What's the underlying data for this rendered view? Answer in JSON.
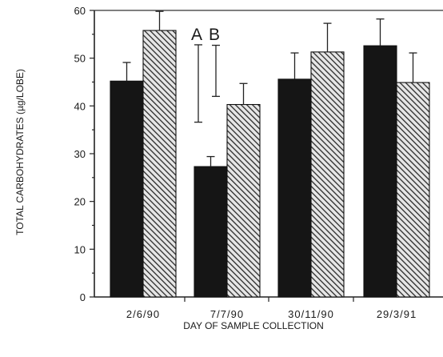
{
  "chart_data": {
    "type": "bar",
    "title": "",
    "xlabel": "DAY OF SAMPLE COLLECTION",
    "ylabel": "TOTAL CARBOHYDRATES (µg/LOBE)",
    "ylim": [
      0,
      60
    ],
    "yticks": [
      0,
      10,
      20,
      30,
      40,
      50,
      60
    ],
    "categories": [
      "2/6/90",
      "7/7/90",
      "30/11/90",
      "29/3/91"
    ],
    "grid": false,
    "legend": "none",
    "series": [
      {
        "style": "solid",
        "color": "#151515",
        "values": [
          45.2,
          27.3,
          45.6,
          52.6
        ],
        "errors": [
          3.9,
          2.1,
          5.5,
          5.6
        ]
      },
      {
        "style": "hatched",
        "color": "#3a3a3a",
        "values": [
          55.8,
          40.3,
          51.3,
          44.9
        ],
        "errors": [
          4.0,
          4.4,
          6.0,
          6.2
        ]
      }
    ],
    "annotations": [
      {
        "label": "A",
        "range": [
          36.6,
          52.8
        ]
      },
      {
        "label": "B",
        "range": [
          42.0,
          52.7
        ]
      }
    ]
  }
}
